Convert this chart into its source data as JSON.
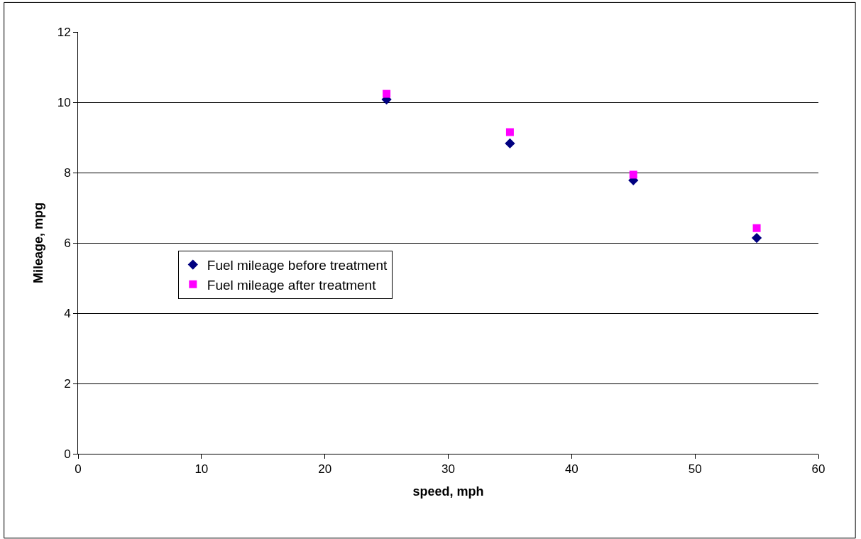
{
  "chart_data": {
    "type": "scatter",
    "xlabel": "speed, mph",
    "ylabel": "Mileage, mpg",
    "x": [
      25,
      35,
      45,
      55
    ],
    "series": [
      {
        "name": "Fuel mileage before treatment",
        "color": "#000080",
        "marker": "diamond",
        "values": [
          10.08,
          8.83,
          7.78,
          6.14
        ]
      },
      {
        "name": "Fuel mileage after treatment",
        "color": "#ff00ff",
        "marker": "square",
        "values": [
          10.24,
          9.15,
          7.94,
          6.42
        ]
      }
    ],
    "xlim": [
      0,
      60
    ],
    "xticks": [
      0,
      10,
      20,
      30,
      40,
      50,
      60
    ],
    "ylim": [
      0,
      12
    ],
    "yticks": [
      0,
      2,
      4,
      6,
      8,
      10,
      12
    ],
    "grid": "y",
    "legend": "center left"
  }
}
